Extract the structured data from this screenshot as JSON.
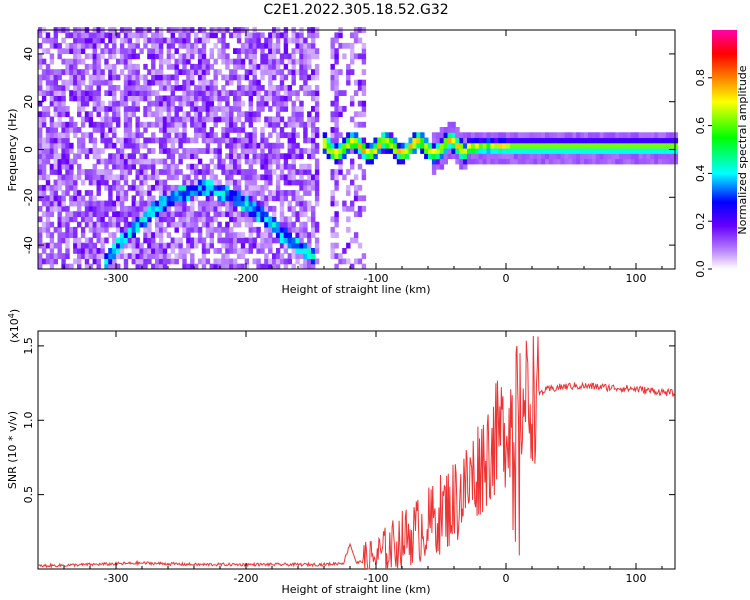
{
  "title": "C2E1.2022.305.18.52.G32",
  "chart_data": [
    {
      "type": "heatmap",
      "xlabel": "Height of straight line (km)",
      "ylabel": "Frequency (Hz)",
      "xlim": [
        -360,
        130
      ],
      "ylim": [
        -50,
        50
      ],
      "xticks": [
        -300,
        -200,
        -100,
        0,
        100
      ],
      "yticks": [
        -40,
        -20,
        0,
        20,
        40
      ],
      "colorbar": {
        "label": "Normalized spectral amplitude",
        "range": [
          0,
          1
        ],
        "ticks": [
          0.0,
          0.2,
          0.4,
          0.6,
          0.8
        ],
        "colormap": [
          "#ffffff",
          "#b880ff",
          "#6600ff",
          "#0000ff",
          "#00ffff",
          "#00ff00",
          "#ffff00",
          "#ff8000",
          "#ff0000",
          "#ff00aa"
        ]
      },
      "features": [
        {
          "name": "noise region",
          "x_range": [
            -360,
            -110
          ],
          "f_range": [
            -50,
            50
          ],
          "amplitude": 0.15
        },
        {
          "name": "arc trace",
          "points": [
            [
              -310,
              -48
            ],
            [
              -290,
              -35
            ],
            [
              -270,
              -25
            ],
            [
              -250,
              -19
            ],
            [
              -230,
              -17
            ],
            [
              -210,
              -21
            ],
            [
              -190,
              -28
            ],
            [
              -170,
              -38
            ],
            [
              -150,
              -46
            ]
          ],
          "amplitude": 0.3
        },
        {
          "name": "signal band",
          "x_range": [
            -143,
            130
          ],
          "f_center": 0,
          "amplitude": 0.65
        }
      ]
    },
    {
      "type": "line",
      "xlabel": "Height of straight line (km)",
      "ylabel": "SNR (10 * v/v)",
      "yscale_label": "(x10",
      "yscale_exp": "4",
      "xlim": [
        -360,
        130
      ],
      "ylim": [
        0,
        1.6
      ],
      "xticks": [
        -300,
        -200,
        -100,
        0,
        100
      ],
      "yticks": [
        0.5,
        1.0,
        1.5
      ],
      "line_color": "#ee3333",
      "series": [
        {
          "x": [
            -360,
            -320,
            -280,
            -240,
            -200,
            -160,
            -140,
            -125,
            -120,
            -115,
            -100,
            -80,
            -60,
            -40,
            -30,
            -20,
            -10,
            0,
            5,
            10,
            20,
            30,
            40,
            50,
            60,
            80,
            100,
            120,
            130
          ],
          "y": [
            0.02,
            0.03,
            0.04,
            0.03,
            0.03,
            0.03,
            0.03,
            0.04,
            0.17,
            0.04,
            0.08,
            0.2,
            0.3,
            0.45,
            0.55,
            0.7,
            0.85,
            0.95,
            1.05,
            1.1,
            1.16,
            1.2,
            1.22,
            1.23,
            1.23,
            1.22,
            1.21,
            1.19,
            1.18
          ]
        }
      ]
    }
  ]
}
